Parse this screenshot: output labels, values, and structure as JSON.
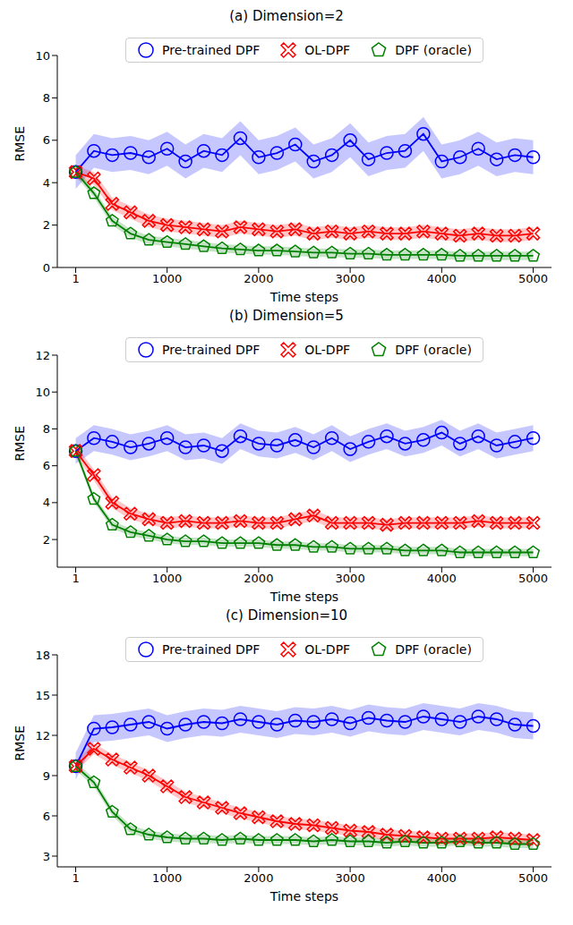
{
  "chart_data": [
    {
      "type": "line",
      "title": "(a) Dimension=2",
      "x_label": "Time steps",
      "y_label": "RMSE",
      "x": [
        1,
        200,
        400,
        600,
        800,
        1000,
        1200,
        1400,
        1600,
        1800,
        2000,
        2200,
        2400,
        2600,
        2800,
        3000,
        3200,
        3400,
        3600,
        3800,
        4000,
        4200,
        4400,
        4600,
        4800,
        5000
      ],
      "xlim": [
        -200,
        5200
      ],
      "xticks": [
        1,
        1000,
        2000,
        3000,
        4000,
        5000
      ],
      "ylim": [
        0,
        10
      ],
      "yticks": [
        0,
        2,
        4,
        6,
        8,
        10
      ],
      "legend": "upper center",
      "series": [
        {
          "name": "Pre-trained DPF",
          "color": "#0000ff",
          "marker": "circle",
          "error": 0.8,
          "values": [
            4.5,
            5.5,
            5.3,
            5.4,
            5.2,
            5.6,
            5.0,
            5.5,
            5.3,
            6.1,
            5.2,
            5.4,
            5.8,
            5.0,
            5.3,
            6.0,
            5.1,
            5.4,
            5.5,
            6.3,
            5.0,
            5.2,
            5.6,
            5.1,
            5.3,
            5.2
          ]
        },
        {
          "name": "OL-DPF",
          "color": "#ff0000",
          "marker": "x",
          "error": 0.3,
          "values": [
            4.5,
            4.2,
            3.0,
            2.6,
            2.2,
            2.0,
            1.9,
            1.8,
            1.7,
            1.9,
            1.8,
            1.7,
            1.8,
            1.6,
            1.7,
            1.6,
            1.7,
            1.6,
            1.6,
            1.7,
            1.6,
            1.5,
            1.6,
            1.5,
            1.5,
            1.6
          ]
        },
        {
          "name": "DPF (oracle)",
          "color": "#008000",
          "marker": "pentagon",
          "error": 0.2,
          "values": [
            4.5,
            3.5,
            2.2,
            1.6,
            1.3,
            1.2,
            1.1,
            1.0,
            0.9,
            0.85,
            0.8,
            0.8,
            0.75,
            0.7,
            0.7,
            0.65,
            0.65,
            0.6,
            0.6,
            0.6,
            0.6,
            0.55,
            0.55,
            0.55,
            0.55,
            0.55
          ]
        }
      ]
    },
    {
      "type": "line",
      "title": "(b) Dimension=5",
      "x_label": "Time steps",
      "y_label": "RMSE",
      "x": [
        1,
        200,
        400,
        600,
        800,
        1000,
        1200,
        1400,
        1600,
        1800,
        2000,
        2200,
        2400,
        2600,
        2800,
        3000,
        3200,
        3400,
        3600,
        3800,
        4000,
        4200,
        4400,
        4600,
        4800,
        5000
      ],
      "xlim": [
        -200,
        5200
      ],
      "xticks": [
        1,
        1000,
        2000,
        3000,
        4000,
        5000
      ],
      "ylim": [
        0.5,
        12
      ],
      "yticks": [
        2,
        4,
        6,
        8,
        10,
        12
      ],
      "legend": "upper center",
      "series": [
        {
          "name": "Pre-trained DPF",
          "color": "#0000ff",
          "marker": "circle",
          "error": 0.7,
          "values": [
            6.8,
            7.5,
            7.3,
            7.0,
            7.2,
            7.5,
            7.0,
            7.1,
            6.8,
            7.6,
            7.2,
            7.1,
            7.4,
            7.0,
            7.5,
            6.9,
            7.3,
            7.6,
            7.2,
            7.4,
            7.8,
            7.2,
            7.6,
            7.1,
            7.3,
            7.5
          ]
        },
        {
          "name": "OL-DPF",
          "color": "#ff0000",
          "marker": "x",
          "error": 0.3,
          "values": [
            6.8,
            5.5,
            4.0,
            3.4,
            3.1,
            2.9,
            3.0,
            2.9,
            2.9,
            3.0,
            2.9,
            2.9,
            3.1,
            3.3,
            2.9,
            2.9,
            2.9,
            2.8,
            2.9,
            2.9,
            2.9,
            2.9,
            3.0,
            2.9,
            2.9,
            2.9
          ]
        },
        {
          "name": "DPF (oracle)",
          "color": "#008000",
          "marker": "pentagon",
          "error": 0.2,
          "values": [
            6.8,
            4.2,
            2.8,
            2.4,
            2.2,
            2.0,
            1.9,
            1.9,
            1.8,
            1.8,
            1.8,
            1.7,
            1.7,
            1.6,
            1.6,
            1.5,
            1.5,
            1.5,
            1.4,
            1.4,
            1.4,
            1.3,
            1.3,
            1.3,
            1.3,
            1.3
          ]
        }
      ]
    },
    {
      "type": "line",
      "title": "(c) Dimension=10",
      "x_label": "Time steps",
      "y_label": "RMSE",
      "x": [
        1,
        200,
        400,
        600,
        800,
        1000,
        1200,
        1400,
        1600,
        1800,
        2000,
        2200,
        2400,
        2600,
        2800,
        3000,
        3200,
        3400,
        3600,
        3800,
        4000,
        4200,
        4400,
        4600,
        4800,
        5000
      ],
      "xlim": [
        -200,
        5200
      ],
      "xticks": [
        1,
        1000,
        2000,
        3000,
        4000,
        5000
      ],
      "ylim": [
        2.2,
        18
      ],
      "yticks": [
        3,
        6,
        9,
        12,
        15,
        18
      ],
      "legend": "upper center",
      "series": [
        {
          "name": "Pre-trained DPF",
          "color": "#0000ff",
          "marker": "circle",
          "error": 1.0,
          "values": [
            9.7,
            12.5,
            12.6,
            12.8,
            13.0,
            12.5,
            12.8,
            13.0,
            12.9,
            13.2,
            13.0,
            12.8,
            13.1,
            13.0,
            13.2,
            12.9,
            13.3,
            13.1,
            13.0,
            13.4,
            13.2,
            13.0,
            13.4,
            13.2,
            12.8,
            12.7
          ]
        },
        {
          "name": "OL-DPF",
          "color": "#ff0000",
          "marker": "x",
          "error": 0.4,
          "values": [
            9.7,
            11.0,
            10.2,
            9.6,
            9.0,
            8.2,
            7.4,
            7.0,
            6.6,
            6.2,
            5.9,
            5.6,
            5.4,
            5.3,
            5.1,
            4.9,
            4.8,
            4.6,
            4.5,
            4.4,
            4.3,
            4.3,
            4.3,
            4.4,
            4.3,
            4.2
          ]
        },
        {
          "name": "DPF (oracle)",
          "color": "#008000",
          "marker": "pentagon",
          "error": 0.3,
          "values": [
            9.7,
            8.5,
            6.3,
            5.0,
            4.6,
            4.4,
            4.3,
            4.3,
            4.2,
            4.3,
            4.2,
            4.2,
            4.2,
            4.1,
            4.2,
            4.1,
            4.1,
            4.0,
            4.1,
            4.0,
            4.0,
            4.1,
            4.0,
            4.0,
            3.9,
            3.9
          ]
        }
      ]
    }
  ]
}
